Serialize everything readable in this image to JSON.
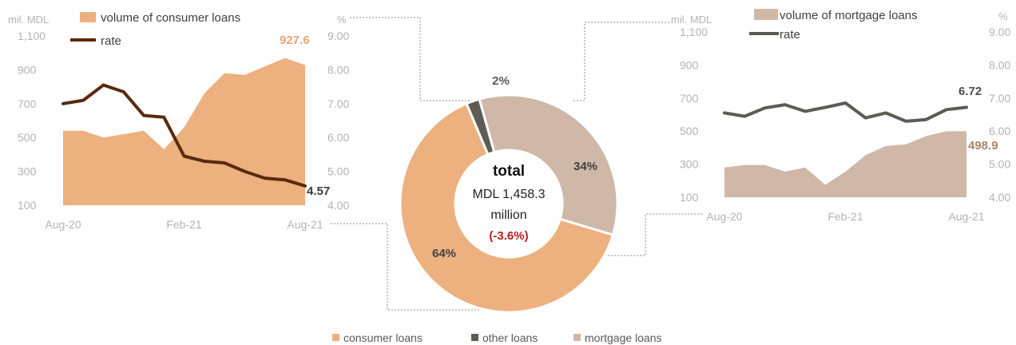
{
  "colors": {
    "consumer": "#edb07f",
    "consumer_rate": "#5a2a0c",
    "mortgage": "#cfb8a7",
    "mortgage_rate": "#5c5c56",
    "other": "#5f5c55",
    "callout_consumer": "#e8a572",
    "callout_mortgage": "#a8856a",
    "callout_rate1": "#3c3c3c",
    "callout_rate2": "#4d4d4d",
    "negative": "#b02020",
    "tick": "#b3b3b3",
    "connector": "#8c8c8c"
  },
  "left_chart": {
    "y_unit": "mil. MDL",
    "y2_unit": "%",
    "legend": {
      "area": "volume of consumer loans",
      "line": "rate"
    },
    "last_volume_label": "927.6",
    "last_rate_label": "4.57"
  },
  "right_chart": {
    "y_unit": "mil. MDL",
    "y2_unit": "%",
    "legend": {
      "area": "volume of mortgage loans",
      "line": "rate"
    },
    "last_volume_label": "498.9",
    "last_rate_label": "6.72"
  },
  "donut": {
    "total_label": "total",
    "amount_line": "MDL 1,458.3",
    "unit_line": "million",
    "change_line": "(-3.6%)",
    "legend": [
      "consumer loans",
      "other loans",
      "mortgage loans"
    ]
  },
  "chart_data": [
    {
      "type": "area",
      "x": [
        "Aug-20",
        "Sep-20",
        "Oct-20",
        "Nov-20",
        "Dec-20",
        "Jan-21",
        "Feb-21",
        "Mar-21",
        "Apr-21",
        "May-21",
        "Jun-21",
        "Jul-21",
        "Aug-21"
      ],
      "x_tick_labels": [
        "Aug-20",
        "Feb-21",
        "Aug-21"
      ],
      "series": [
        {
          "name": "volume of consumer loans",
          "axis": "left",
          "values": [
            540,
            540,
            500,
            520,
            540,
            430,
            560,
            760,
            880,
            870,
            920,
            970,
            928
          ]
        },
        {
          "name": "rate",
          "type": "line",
          "axis": "right",
          "values": [
            7.0,
            7.1,
            7.55,
            7.35,
            6.65,
            6.6,
            5.45,
            5.3,
            5.25,
            5.0,
            4.8,
            4.75,
            4.57
          ]
        }
      ],
      "y_ticks": [
        "1,100",
        "900",
        "700",
        "500",
        "300",
        "100"
      ],
      "y2_ticks": [
        "9.00",
        "8.00",
        "7.00",
        "6.00",
        "5.00",
        "4.00"
      ],
      "ylim": [
        100,
        1100
      ],
      "y2lim": [
        4,
        9
      ]
    },
    {
      "type": "pie",
      "labels": [
        "consumer loans",
        "other loans",
        "mortgage loans"
      ],
      "values": [
        64,
        2,
        34
      ],
      "value_labels": [
        "64%",
        "2%",
        "34%"
      ]
    },
    {
      "type": "area",
      "x": [
        "Aug-20",
        "Sep-20",
        "Oct-20",
        "Nov-20",
        "Dec-20",
        "Jan-21",
        "Feb-21",
        "Mar-21",
        "Apr-21",
        "May-21",
        "Jun-21",
        "Jul-21",
        "Aug-21"
      ],
      "x_tick_labels": [
        "Aug-20",
        "Feb-21",
        "Aug-21"
      ],
      "series": [
        {
          "name": "volume of mortgage loans",
          "axis": "left",
          "values": [
            280,
            295,
            295,
            255,
            280,
            175,
            255,
            355,
            410,
            420,
            470,
            499,
            499
          ]
        },
        {
          "name": "rate",
          "type": "line",
          "axis": "right",
          "values": [
            6.55,
            6.45,
            6.7,
            6.8,
            6.6,
            6.72,
            6.85,
            6.4,
            6.55,
            6.3,
            6.35,
            6.65,
            6.72
          ]
        }
      ],
      "y_ticks": [
        "1,100",
        "900",
        "700",
        "500",
        "300",
        "100"
      ],
      "y2_ticks": [
        "9.00",
        "8.00",
        "7.00",
        "6.00",
        "5.00",
        "4.00"
      ],
      "ylim": [
        100,
        1100
      ],
      "y2lim": [
        4,
        9
      ]
    }
  ]
}
